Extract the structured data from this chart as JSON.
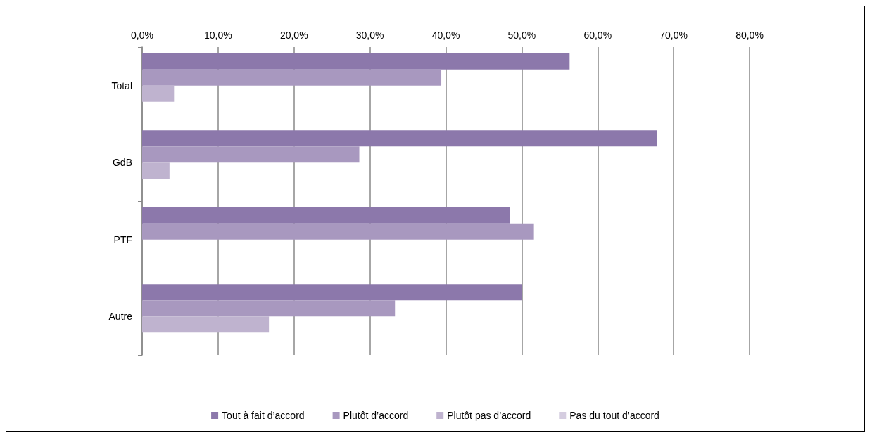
{
  "chart_data": {
    "type": "bar",
    "orientation": "horizontal",
    "categories": [
      "Total",
      "GdB",
      "PTF",
      "Autre"
    ],
    "series": [
      {
        "name": "Tout à fait d’accord",
        "color": "#8c78ab",
        "values": [
          56.3,
          67.8,
          48.4,
          50.0
        ]
      },
      {
        "name": "Plutôt d’accord",
        "color": "#a898bf",
        "values": [
          39.4,
          28.6,
          51.6,
          33.3
        ]
      },
      {
        "name": "Plutôt pas d’accord",
        "color": "#bfb3cf",
        "values": [
          4.2,
          3.6,
          null,
          16.7
        ]
      },
      {
        "name": "Pas du tout d’accord",
        "color": "#d5cde0",
        "values": [
          null,
          null,
          null,
          null
        ]
      }
    ],
    "xlim": [
      0,
      80
    ],
    "xticks": [
      {
        "value": 0,
        "label": "0,0%"
      },
      {
        "value": 10,
        "label": "10,0%"
      },
      {
        "value": 20,
        "label": "20,0%"
      },
      {
        "value": 30,
        "label": "30,0%"
      },
      {
        "value": 40,
        "label": "40,0%"
      },
      {
        "value": 50,
        "label": "50,0%"
      },
      {
        "value": 60,
        "label": "60,0%"
      },
      {
        "value": 70,
        "label": "70,0%"
      },
      {
        "value": 80,
        "label": "80,0%"
      }
    ],
    "grid": "x",
    "legend": "bottom"
  }
}
